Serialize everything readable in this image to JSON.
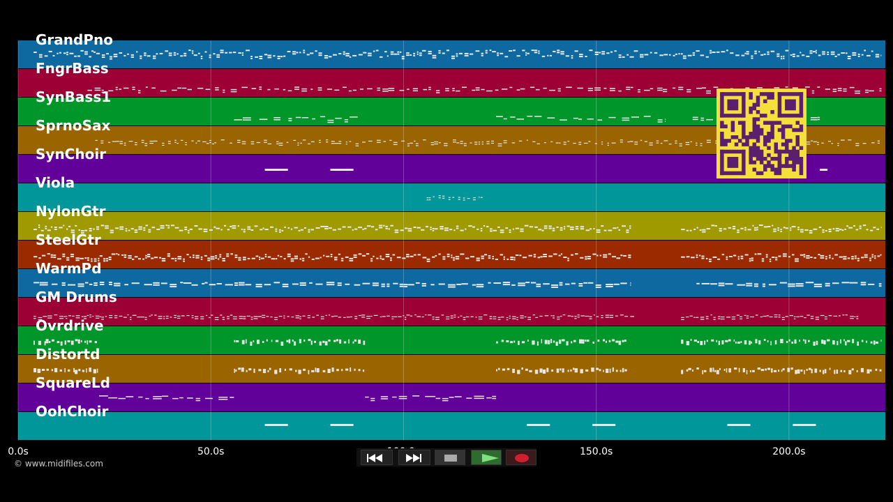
{
  "tracks": [
    {
      "name": "GrandPno",
      "color": "#0f69a1"
    },
    {
      "name": "FngrBass",
      "color": "#9c0035"
    },
    {
      "name": "SynBass1",
      "color": "#00962a"
    },
    {
      "name": "SprnoSax",
      "color": "#9a6400"
    },
    {
      "name": "SynChoir",
      "color": "#62009a"
    },
    {
      "name": "Viola",
      "color": "#00969a"
    },
    {
      "name": "NylonGtr",
      "color": "#9e9a00"
    },
    {
      "name": "SteelGtr",
      "color": "#9c2a00"
    },
    {
      "name": "WarmPd",
      "color": "#0f69a1"
    },
    {
      "name": "GM Drums",
      "color": "#9c0035"
    },
    {
      "name": "Ovrdrive",
      "color": "#00962a"
    },
    {
      "name": "Distortd",
      "color": "#9a6400"
    },
    {
      "name": "SquareLd",
      "color": "#62009a"
    },
    {
      "name": "OohChoir",
      "color": "#00969a"
    }
  ],
  "timeline": {
    "ticks": [
      "0.0s",
      "50.0s",
      "100.0s",
      "150.0s",
      "200.0s"
    ],
    "max_seconds": 225
  },
  "copyright": "© www.midifiles.com",
  "transport": {
    "buttons": [
      {
        "name": "rewind-button",
        "icon": "rewind-icon"
      },
      {
        "name": "fast-forward-button",
        "icon": "fast-forward-icon"
      },
      {
        "name": "stop-button",
        "icon": "stop-icon"
      },
      {
        "name": "play-button",
        "icon": "play-icon"
      },
      {
        "name": "record-button",
        "icon": "record-icon"
      }
    ]
  },
  "note_color": "#e8e8e8"
}
